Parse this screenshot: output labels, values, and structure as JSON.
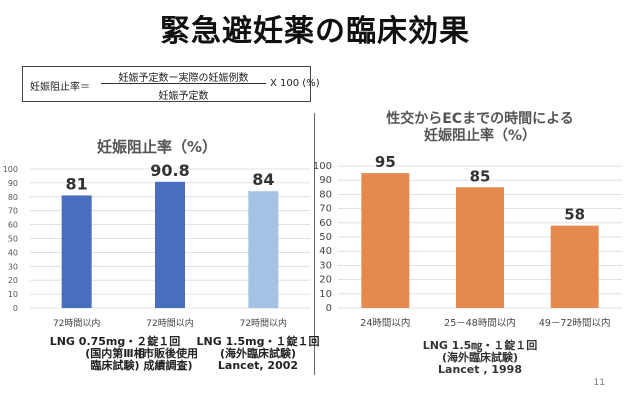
{
  "slide": {
    "title": "緊急避妊薬の臨床効果",
    "page_number": "11"
  },
  "formula": {
    "lhs": "妊娠阻止率＝",
    "numerator": "妊娠予定数ー実際の妊娠例数",
    "denominator": "妊娠予定数",
    "rhs": "X 100 (%)"
  },
  "chart_data": [
    {
      "type": "bar",
      "title": "妊娠阻止率（%）",
      "categories": [
        "72時間以内",
        "72時間以内",
        "72時間以内"
      ],
      "values": [
        81,
        90.8,
        84
      ],
      "data_labels": [
        "81",
        "90.8",
        "84"
      ],
      "colors": [
        "#4a6ebf",
        "#4a6ebf",
        "#a4c2e4"
      ],
      "ylim": [
        0,
        100
      ],
      "yticks": [
        0,
        10,
        20,
        30,
        40,
        50,
        60,
        70,
        80,
        90,
        100
      ],
      "grid": true,
      "bar_notes": [
        [
          "LNG 0.75mg・２錠１回",
          "(国内第Ⅲ相",
          "臨床試験)"
        ],
        [
          "(市販後使用",
          "成績調査)"
        ],
        [
          "LNG 1.5mg・１錠１回",
          "(海外臨床試験)",
          "Lancet, 2002"
        ]
      ]
    },
    {
      "type": "bar",
      "title": [
        "性交からECまでの時間による",
        "妊娠阻止率（%）"
      ],
      "categories": [
        "24時間以内",
        "25－48時間以内",
        "49－72時間以内"
      ],
      "values": [
        95,
        85,
        58
      ],
      "data_labels": [
        "95",
        "85",
        "58"
      ],
      "colors": [
        "#e58a4f",
        "#e58a4f",
        "#e58a4f"
      ],
      "ylim": [
        0,
        100
      ],
      "yticks": [
        0,
        10,
        20,
        30,
        40,
        50,
        60,
        70,
        80,
        90,
        100
      ],
      "grid": true,
      "notes": [
        "LNG 1.5㎎・１錠１回",
        "(海外臨床試験)",
        "Lancet , 1998"
      ]
    }
  ]
}
